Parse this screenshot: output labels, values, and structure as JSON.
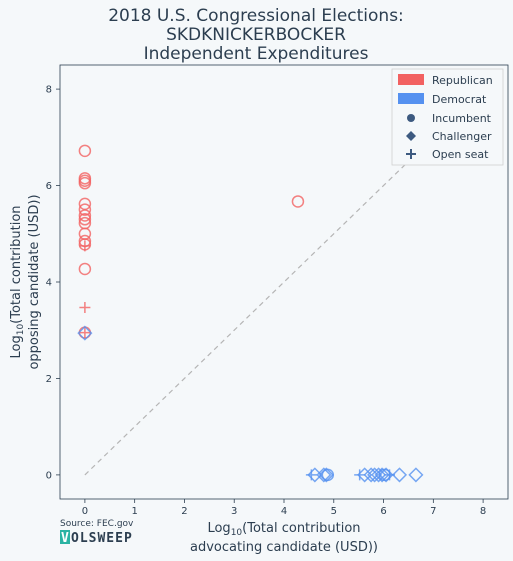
{
  "title": {
    "line1": "2018 U.S. Congressional Elections:",
    "line2": "SKDKNICKERBOCKER",
    "line3": "Independent Expenditures"
  },
  "source": "Source: FEC.gov",
  "brand": {
    "logo_letter": "V",
    "rest": "OLSWEEP"
  },
  "colors": {
    "republican": "#f26161",
    "democrat": "#5591f0",
    "marker_neutral": "#3d5a80",
    "diagonal": "#b5b5b5",
    "plot_bg": "#f5f8fa",
    "logo_bg": "#2bb3a3"
  },
  "chart_data": {
    "type": "scatter",
    "xlabel_prefix": "Log",
    "xlabel_sub": "10",
    "xlabel_rest": "(Total contribution",
    "xlabel_line2": "advocating candidate (USD))",
    "ylabel_prefix": "Log",
    "ylabel_sub": "10",
    "ylabel_rest": "(Total contribution",
    "ylabel_line2": "opposing candidate (USD))",
    "xlim": [
      -0.5,
      8.5
    ],
    "ylim": [
      -0.5,
      8.5
    ],
    "xticks": [
      0,
      1,
      2,
      3,
      4,
      5,
      6,
      7,
      8
    ],
    "yticks": [
      0,
      2,
      4,
      6,
      8
    ],
    "diagonal": [
      [
        0,
        0
      ],
      [
        7,
        7
      ]
    ],
    "legend": {
      "placement": "top-right",
      "parties": [
        {
          "label": "Republican",
          "color": "#f26161"
        },
        {
          "label": "Democrat",
          "color": "#5591f0"
        }
      ],
      "statuses": [
        {
          "label": "Incumbent",
          "marker": "circle"
        },
        {
          "label": "Challenger",
          "marker": "diamond"
        },
        {
          "label": "Open seat",
          "marker": "plus"
        }
      ]
    },
    "points": [
      {
        "x": 0,
        "y": 6.72,
        "party": "republican",
        "status": "incumbent"
      },
      {
        "x": 0,
        "y": 6.15,
        "party": "republican",
        "status": "incumbent"
      },
      {
        "x": 0,
        "y": 6.1,
        "party": "republican",
        "status": "incumbent"
      },
      {
        "x": 0,
        "y": 6.05,
        "party": "republican",
        "status": "incumbent"
      },
      {
        "x": 0,
        "y": 5.62,
        "party": "republican",
        "status": "incumbent"
      },
      {
        "x": 0,
        "y": 5.5,
        "party": "republican",
        "status": "incumbent"
      },
      {
        "x": 0,
        "y": 5.38,
        "party": "republican",
        "status": "incumbent"
      },
      {
        "x": 0,
        "y": 5.3,
        "party": "republican",
        "status": "incumbent"
      },
      {
        "x": 0,
        "y": 5.22,
        "party": "republican",
        "status": "incumbent"
      },
      {
        "x": 0,
        "y": 5.0,
        "party": "republican",
        "status": "incumbent"
      },
      {
        "x": 0,
        "y": 4.85,
        "party": "republican",
        "status": "incumbent"
      },
      {
        "x": 0,
        "y": 4.78,
        "party": "republican",
        "status": "incumbent"
      },
      {
        "x": 0,
        "y": 4.27,
        "party": "republican",
        "status": "incumbent"
      },
      {
        "x": 0,
        "y": 4.75,
        "party": "republican",
        "status": "open"
      },
      {
        "x": 0,
        "y": 3.47,
        "party": "republican",
        "status": "open"
      },
      {
        "x": 0,
        "y": 2.95,
        "party": "republican",
        "status": "incumbent"
      },
      {
        "x": 0,
        "y": 2.95,
        "party": "republican",
        "status": "open"
      },
      {
        "x": 0,
        "y": 2.94,
        "party": "democrat",
        "status": "challenger"
      },
      {
        "x": 4.28,
        "y": 5.67,
        "party": "republican",
        "status": "incumbent"
      },
      {
        "x": 4.55,
        "y": 0,
        "party": "democrat",
        "status": "open"
      },
      {
        "x": 4.62,
        "y": 0,
        "party": "democrat",
        "status": "challenger"
      },
      {
        "x": 4.8,
        "y": 0,
        "party": "democrat",
        "status": "challenger"
      },
      {
        "x": 4.85,
        "y": 0,
        "party": "democrat",
        "status": "challenger"
      },
      {
        "x": 4.88,
        "y": 0,
        "party": "democrat",
        "status": "incumbent"
      },
      {
        "x": 5.52,
        "y": 0,
        "party": "democrat",
        "status": "open"
      },
      {
        "x": 5.62,
        "y": 0,
        "party": "democrat",
        "status": "challenger"
      },
      {
        "x": 5.75,
        "y": 0,
        "party": "democrat",
        "status": "challenger"
      },
      {
        "x": 5.82,
        "y": 0,
        "party": "democrat",
        "status": "challenger"
      },
      {
        "x": 5.9,
        "y": 0,
        "party": "democrat",
        "status": "challenger"
      },
      {
        "x": 5.97,
        "y": 0,
        "party": "democrat",
        "status": "challenger"
      },
      {
        "x": 6.02,
        "y": 0,
        "party": "democrat",
        "status": "incumbent"
      },
      {
        "x": 6.05,
        "y": 0,
        "party": "democrat",
        "status": "challenger"
      },
      {
        "x": 6.12,
        "y": 0,
        "party": "democrat",
        "status": "open"
      },
      {
        "x": 6.32,
        "y": 0,
        "party": "democrat",
        "status": "challenger"
      },
      {
        "x": 6.65,
        "y": 0,
        "party": "democrat",
        "status": "challenger"
      }
    ]
  }
}
